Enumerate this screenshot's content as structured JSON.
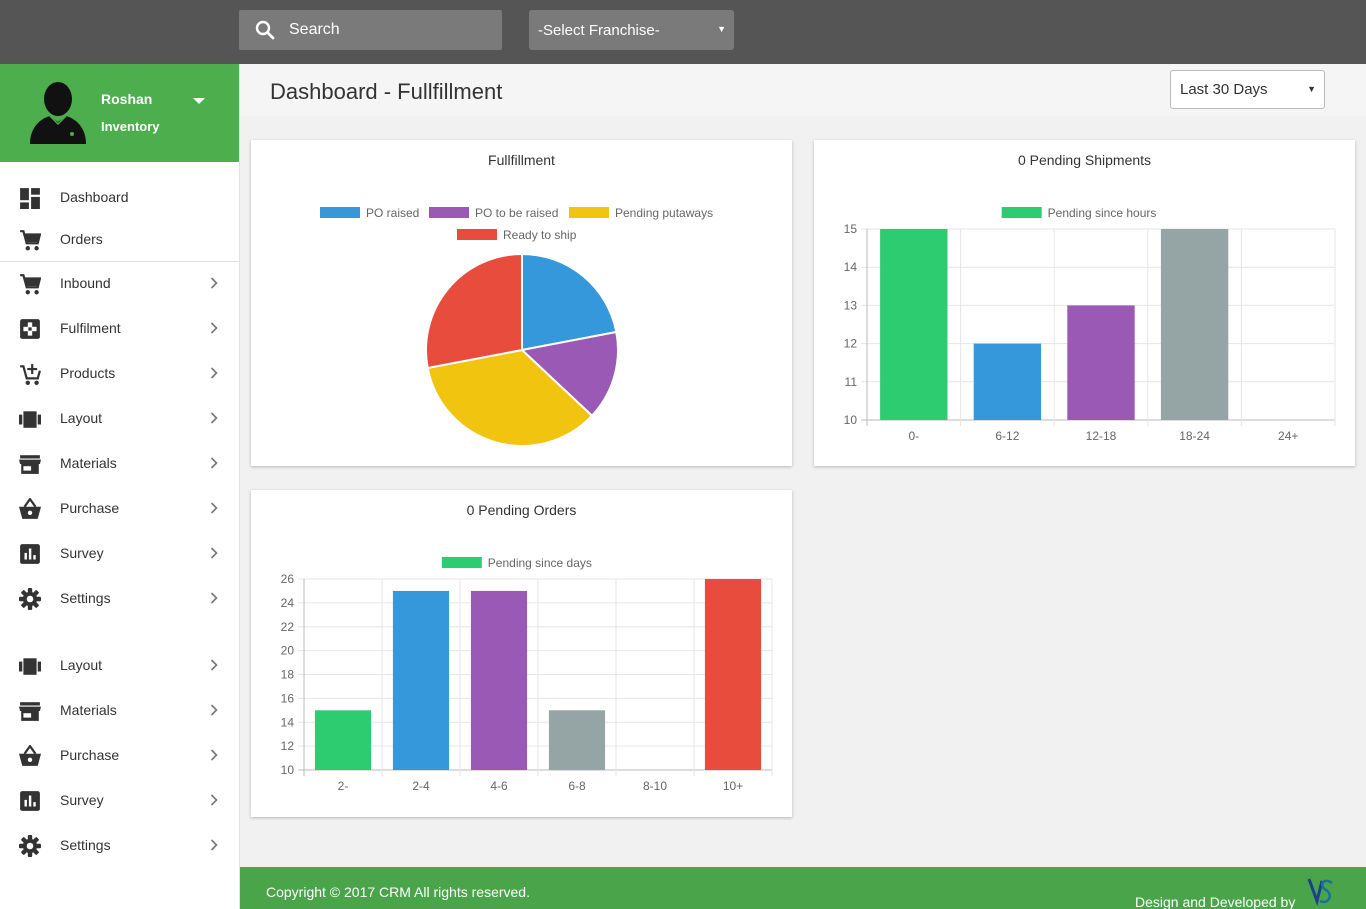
{
  "topbar": {
    "search_placeholder": "Search",
    "franchise_select": "-Select Franchise-"
  },
  "profile": {
    "name": "Roshan",
    "role": "Inventory"
  },
  "sidebar": {
    "items": [
      {
        "label": "Dashboard",
        "icon": "dashboard-icon",
        "chevron": false
      },
      {
        "label": "Orders",
        "icon": "cart-icon",
        "chevron": false
      },
      {
        "label": "Inbound",
        "icon": "cart-icon",
        "chevron": true
      },
      {
        "label": "Fulfilment",
        "icon": "fulfilment-icon",
        "chevron": true
      },
      {
        "label": "Products",
        "icon": "add-cart-icon",
        "chevron": true
      },
      {
        "label": "Layout",
        "icon": "layout-icon",
        "chevron": true
      },
      {
        "label": "Materials",
        "icon": "store-icon",
        "chevron": true
      },
      {
        "label": "Purchase",
        "icon": "basket-icon",
        "chevron": true
      },
      {
        "label": "Survey",
        "icon": "bar-chart-icon",
        "chevron": true
      },
      {
        "label": "Settings",
        "icon": "gear-icon",
        "chevron": true
      },
      {
        "label": "Layout",
        "icon": "layout-icon",
        "chevron": true
      },
      {
        "label": "Materials",
        "icon": "store-icon",
        "chevron": true
      },
      {
        "label": "Purchase",
        "icon": "basket-icon",
        "chevron": true
      },
      {
        "label": "Survey",
        "icon": "bar-chart-icon",
        "chevron": true
      },
      {
        "label": "Settings",
        "icon": "gear-icon",
        "chevron": true
      }
    ]
  },
  "header": {
    "title": "Dashboard - Fullfillment",
    "range": "Last 30 Days"
  },
  "chart_data": [
    {
      "type": "pie",
      "title": "Fullfillment",
      "categories": [
        "PO raised",
        "PO to be raised",
        "Pending putaways",
        "Ready to ship"
      ],
      "values": [
        22,
        15,
        35,
        28
      ],
      "colors": [
        "#3498db",
        "#9b59b6",
        "#f1c40f",
        "#e74c3c"
      ],
      "legend": "top"
    },
    {
      "type": "bar",
      "title": "0 Pending Shipments",
      "categories": [
        "0-",
        "6-12",
        "12-18",
        "18-24",
        "24+"
      ],
      "series": [
        {
          "name": "Pending since hours",
          "values": [
            15,
            12,
            13,
            15,
            null
          ]
        }
      ],
      "colors": [
        "#2ecc71",
        "#3498db",
        "#9b59b6",
        "#95a5a6",
        "#e74c3c"
      ],
      "legend_color": "#2ecc71",
      "ylim": [
        10,
        15
      ],
      "yticks": [
        10,
        11,
        12,
        13,
        14,
        15
      ],
      "grid": true,
      "legend": "top"
    },
    {
      "type": "bar",
      "title": "0 Pending Orders",
      "categories": [
        "2-",
        "2-4",
        "4-6",
        "6-8",
        "8-10",
        "10+"
      ],
      "series": [
        {
          "name": "Pending since days",
          "values": [
            15,
            25,
            25,
            15,
            null,
            26
          ]
        }
      ],
      "colors": [
        "#2ecc71",
        "#3498db",
        "#9b59b6",
        "#95a5a6",
        "#f1c40f",
        "#e74c3c"
      ],
      "legend_color": "#2ecc71",
      "ylim": [
        10,
        26
      ],
      "yticks": [
        10,
        12,
        14,
        16,
        18,
        20,
        22,
        24,
        26
      ],
      "grid": true,
      "legend": "top"
    }
  ],
  "footer": {
    "copyright": "Copyright © 2017 CRM All rights reserved.",
    "credit": "Design and Developed by"
  }
}
